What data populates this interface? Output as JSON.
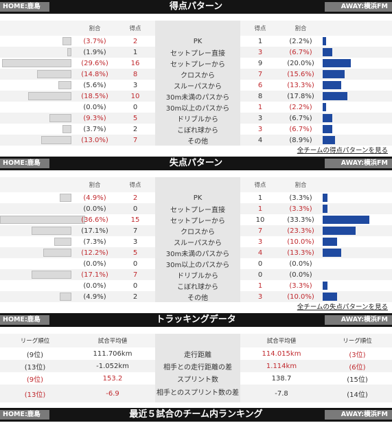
{
  "header": {
    "home": "HOME:鹿島",
    "away": "AWAY:横浜FM"
  },
  "colors": {
    "highlight": "#c0282d",
    "away_bar": "#1f4aa0",
    "home_bar": "#dadada"
  },
  "scoring": {
    "title": "得点パターン",
    "col_ratio": "割合",
    "col_goals": "得点",
    "link": "全チームの得点パターンを見る",
    "rows": [
      {
        "label": "PK",
        "h_pct": "(3.7%)",
        "h_n": "2",
        "a_n": "1",
        "a_pct": "(2.2%)",
        "h_val": 3.7,
        "a_val": 2.2,
        "h_hl": true,
        "a_hl": false
      },
      {
        "label": "セットプレー直接",
        "h_pct": "(1.9%)",
        "h_n": "1",
        "a_n": "3",
        "a_pct": "(6.7%)",
        "h_val": 1.9,
        "a_val": 6.7,
        "h_hl": false,
        "a_hl": true
      },
      {
        "label": "セットプレーから",
        "h_pct": "(29.6%)",
        "h_n": "16",
        "a_n": "9",
        "a_pct": "(20.0%)",
        "h_val": 29.6,
        "a_val": 20.0,
        "h_hl": true,
        "a_hl": false
      },
      {
        "label": "クロスから",
        "h_pct": "(14.8%)",
        "h_n": "8",
        "a_n": "7",
        "a_pct": "(15.6%)",
        "h_val": 14.8,
        "a_val": 15.6,
        "h_hl": true,
        "a_hl": true
      },
      {
        "label": "スルーパスから",
        "h_pct": "(5.6%)",
        "h_n": "3",
        "a_n": "6",
        "a_pct": "(13.3%)",
        "h_val": 5.6,
        "a_val": 13.3,
        "h_hl": false,
        "a_hl": true
      },
      {
        "label": "30m未満のパスから",
        "h_pct": "(18.5%)",
        "h_n": "10",
        "a_n": "8",
        "a_pct": "(17.8%)",
        "h_val": 18.5,
        "a_val": 17.8,
        "h_hl": true,
        "a_hl": false
      },
      {
        "label": "30m以上のパスから",
        "h_pct": "(0.0%)",
        "h_n": "0",
        "a_n": "1",
        "a_pct": "(2.2%)",
        "h_val": 0,
        "a_val": 2.2,
        "h_hl": false,
        "a_hl": true
      },
      {
        "label": "ドリブルから",
        "h_pct": "(9.3%)",
        "h_n": "5",
        "a_n": "3",
        "a_pct": "(6.7%)",
        "h_val": 9.3,
        "a_val": 6.7,
        "h_hl": true,
        "a_hl": false
      },
      {
        "label": "こぼれ球から",
        "h_pct": "(3.7%)",
        "h_n": "2",
        "a_n": "3",
        "a_pct": "(6.7%)",
        "h_val": 3.7,
        "a_val": 6.7,
        "h_hl": false,
        "a_hl": true
      },
      {
        "label": "その他",
        "h_pct": "(13.0%)",
        "h_n": "7",
        "a_n": "4",
        "a_pct": "(8.9%)",
        "h_val": 13.0,
        "a_val": 8.9,
        "h_hl": true,
        "a_hl": false
      }
    ]
  },
  "conceding": {
    "title": "失点パターン",
    "col_ratio": "割合",
    "col_goals": "得点",
    "link": "全チームの失点パターンを見る",
    "rows": [
      {
        "label": "PK",
        "h_pct": "(4.9%)",
        "h_n": "2",
        "a_n": "1",
        "a_pct": "(3.3%)",
        "h_val": 4.9,
        "a_val": 3.3,
        "h_hl": true,
        "a_hl": false
      },
      {
        "label": "セットプレー直接",
        "h_pct": "(0.0%)",
        "h_n": "0",
        "a_n": "1",
        "a_pct": "(3.3%)",
        "h_val": 0,
        "a_val": 3.3,
        "h_hl": false,
        "a_hl": true
      },
      {
        "label": "セットプレーから",
        "h_pct": "(36.6%)",
        "h_n": "15",
        "a_n": "10",
        "a_pct": "(33.3%)",
        "h_val": 36.6,
        "a_val": 33.3,
        "h_hl": true,
        "a_hl": false
      },
      {
        "label": "クロスから",
        "h_pct": "(17.1%)",
        "h_n": "7",
        "a_n": "7",
        "a_pct": "(23.3%)",
        "h_val": 17.1,
        "a_val": 23.3,
        "h_hl": false,
        "a_hl": true
      },
      {
        "label": "スルーパスから",
        "h_pct": "(7.3%)",
        "h_n": "3",
        "a_n": "3",
        "a_pct": "(10.0%)",
        "h_val": 7.3,
        "a_val": 10.0,
        "h_hl": false,
        "a_hl": true
      },
      {
        "label": "30m未満のパスから",
        "h_pct": "(12.2%)",
        "h_n": "5",
        "a_n": "4",
        "a_pct": "(13.3%)",
        "h_val": 12.2,
        "a_val": 13.3,
        "h_hl": true,
        "a_hl": true
      },
      {
        "label": "30m以上のパスから",
        "h_pct": "(0.0%)",
        "h_n": "0",
        "a_n": "0",
        "a_pct": "(0.0%)",
        "h_val": 0,
        "a_val": 0,
        "h_hl": false,
        "a_hl": false
      },
      {
        "label": "ドリブルから",
        "h_pct": "(17.1%)",
        "h_n": "7",
        "a_n": "0",
        "a_pct": "(0.0%)",
        "h_val": 17.1,
        "a_val": 0,
        "h_hl": true,
        "a_hl": false
      },
      {
        "label": "こぼれ球から",
        "h_pct": "(0.0%)",
        "h_n": "0",
        "a_n": "1",
        "a_pct": "(3.3%)",
        "h_val": 0,
        "a_val": 3.3,
        "h_hl": false,
        "a_hl": true
      },
      {
        "label": "その他",
        "h_pct": "(4.9%)",
        "h_n": "2",
        "a_n": "3",
        "a_pct": "(10.0%)",
        "h_val": 4.9,
        "a_val": 10.0,
        "h_hl": false,
        "a_hl": true
      }
    ]
  },
  "tracking": {
    "title": "トラッキングデータ",
    "col_rank": "リーグ順位",
    "col_avg": "試合平均値",
    "rows": [
      {
        "label": "走行距離",
        "h_rank": "(9位)",
        "h_val": "111.706km",
        "a_val": "114.015km",
        "a_rank": "(3位)",
        "h_hl": false,
        "a_hl": true
      },
      {
        "label": "相手との走行距離の差",
        "h_rank": "(13位)",
        "h_val": "-1.052km",
        "a_val": "1.114km",
        "a_rank": "(6位)",
        "h_hl": false,
        "a_hl": true
      },
      {
        "label": "スプリント数",
        "h_rank": "(9位)",
        "h_val": "153.2",
        "a_val": "138.7",
        "a_rank": "(15位)",
        "h_hl": true,
        "a_hl": false
      },
      {
        "label": "相手とのスプリント数の差",
        "h_rank": "(13位)",
        "h_val": "-6.9",
        "a_val": "-7.8",
        "a_rank": "(14位)",
        "h_hl": true,
        "a_hl": false
      }
    ]
  },
  "ranking": {
    "title": "最近５試合のチーム内ランキング"
  }
}
